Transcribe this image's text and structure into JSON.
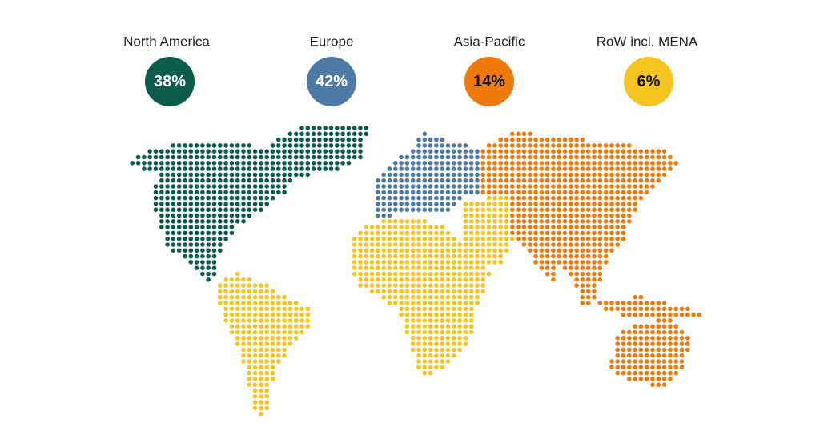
{
  "regions": [
    {
      "name": "North America",
      "value": "38%",
      "color": "#0b5c4a"
    },
    {
      "name": "Europe",
      "value": "42%",
      "color": "#4e7ba6"
    },
    {
      "name": "Asia-Pacific",
      "value": "14%",
      "color": "#ee7a0c"
    },
    {
      "name": "RoW incl. MENA",
      "value": "6%",
      "color": "#f6c41e"
    }
  ]
}
